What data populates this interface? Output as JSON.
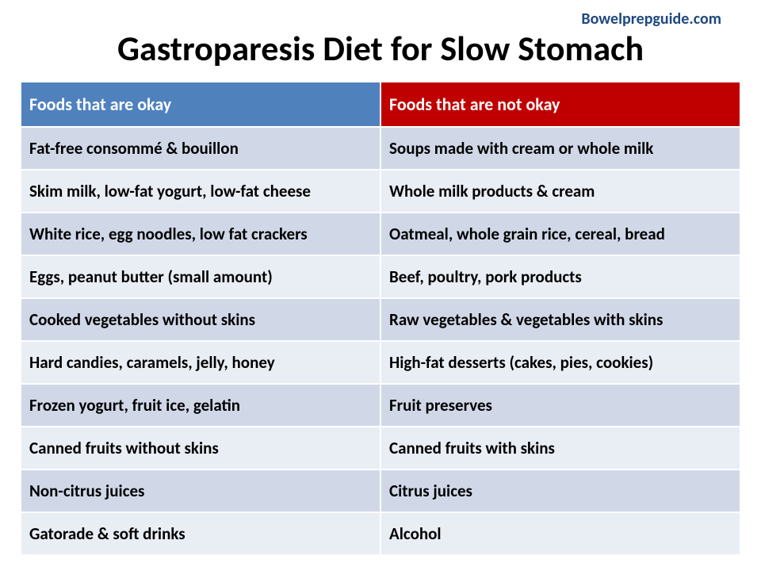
{
  "source": {
    "text": "Bowelprepguide.com",
    "color": "#1f497d",
    "fontsize": 20
  },
  "title": {
    "text": "Gastroparesis Diet for Slow Stomach",
    "fontsize": 44,
    "color": "#000000"
  },
  "table": {
    "header_fontsize": 22,
    "cell_fontsize": 21,
    "cell_color": "#000000",
    "columns": [
      {
        "label": "Foods that are okay",
        "bg": "#4f81bd",
        "color": "#ffffff"
      },
      {
        "label": "Foods that are not okay",
        "bg": "#c00000",
        "color": "#ffffff"
      }
    ],
    "row_colors": {
      "odd": "#d0d8e8",
      "even": "#e9edf4"
    },
    "rows": [
      {
        "ok": "Fat-free consommé & bouillon",
        "not": "Soups made with cream or whole milk"
      },
      {
        "ok": "Skim milk, low-fat yogurt, low-fat cheese",
        "not": "Whole milk products & cream"
      },
      {
        "ok": "White rice, egg noodles, low fat crackers",
        "not": "Oatmeal, whole grain rice, cereal, bread"
      },
      {
        "ok": "Eggs, peanut butter (small amount)",
        "not": "Beef, poultry, pork products"
      },
      {
        "ok": "Cooked vegetables without skins",
        "not": "Raw vegetables & vegetables with skins"
      },
      {
        "ok": "Hard candies, caramels, jelly, honey",
        "not": "High-fat desserts (cakes, pies, cookies)"
      },
      {
        "ok": "Frozen yogurt, fruit ice, gelatin",
        "not": "Fruit preserves"
      },
      {
        "ok": "Canned fruits without skins",
        "not": "Canned fruits with skins"
      },
      {
        "ok": "Non-citrus juices",
        "not": "Citrus juices"
      },
      {
        "ok": "Gatorade & soft drinks",
        "not": "Alcohol"
      }
    ]
  }
}
